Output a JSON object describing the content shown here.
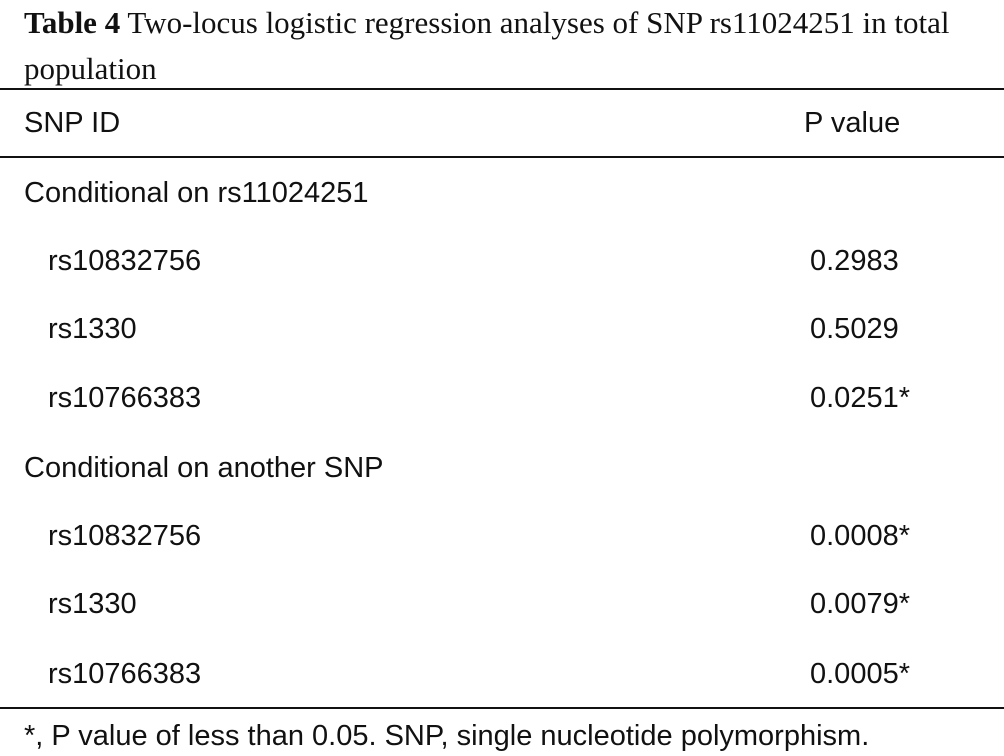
{
  "caption": {
    "label": "Table 4",
    "text": "Two-locus logistic regression analyses of SNP rs11024251 in total population"
  },
  "table": {
    "headers": {
      "snp_id": "SNP ID",
      "p_value": "P value"
    },
    "sections": [
      {
        "title": "Conditional on rs11024251",
        "rows": [
          {
            "snp": "rs10832756",
            "p": "0.2983"
          },
          {
            "snp": "rs1330",
            "p": "0.5029"
          },
          {
            "snp": "rs10766383",
            "p": "0.0251*"
          }
        ]
      },
      {
        "title": "Conditional on another SNP",
        "rows": [
          {
            "snp": "rs10832756",
            "p": "0.0008*"
          },
          {
            "snp": "rs1330",
            "p": "0.0079*"
          },
          {
            "snp": "rs10766383",
            "p": "0.0005*"
          }
        ]
      }
    ]
  },
  "footnote": "*, P value of less than 0.05. SNP, single nucleotide polymorphism."
}
